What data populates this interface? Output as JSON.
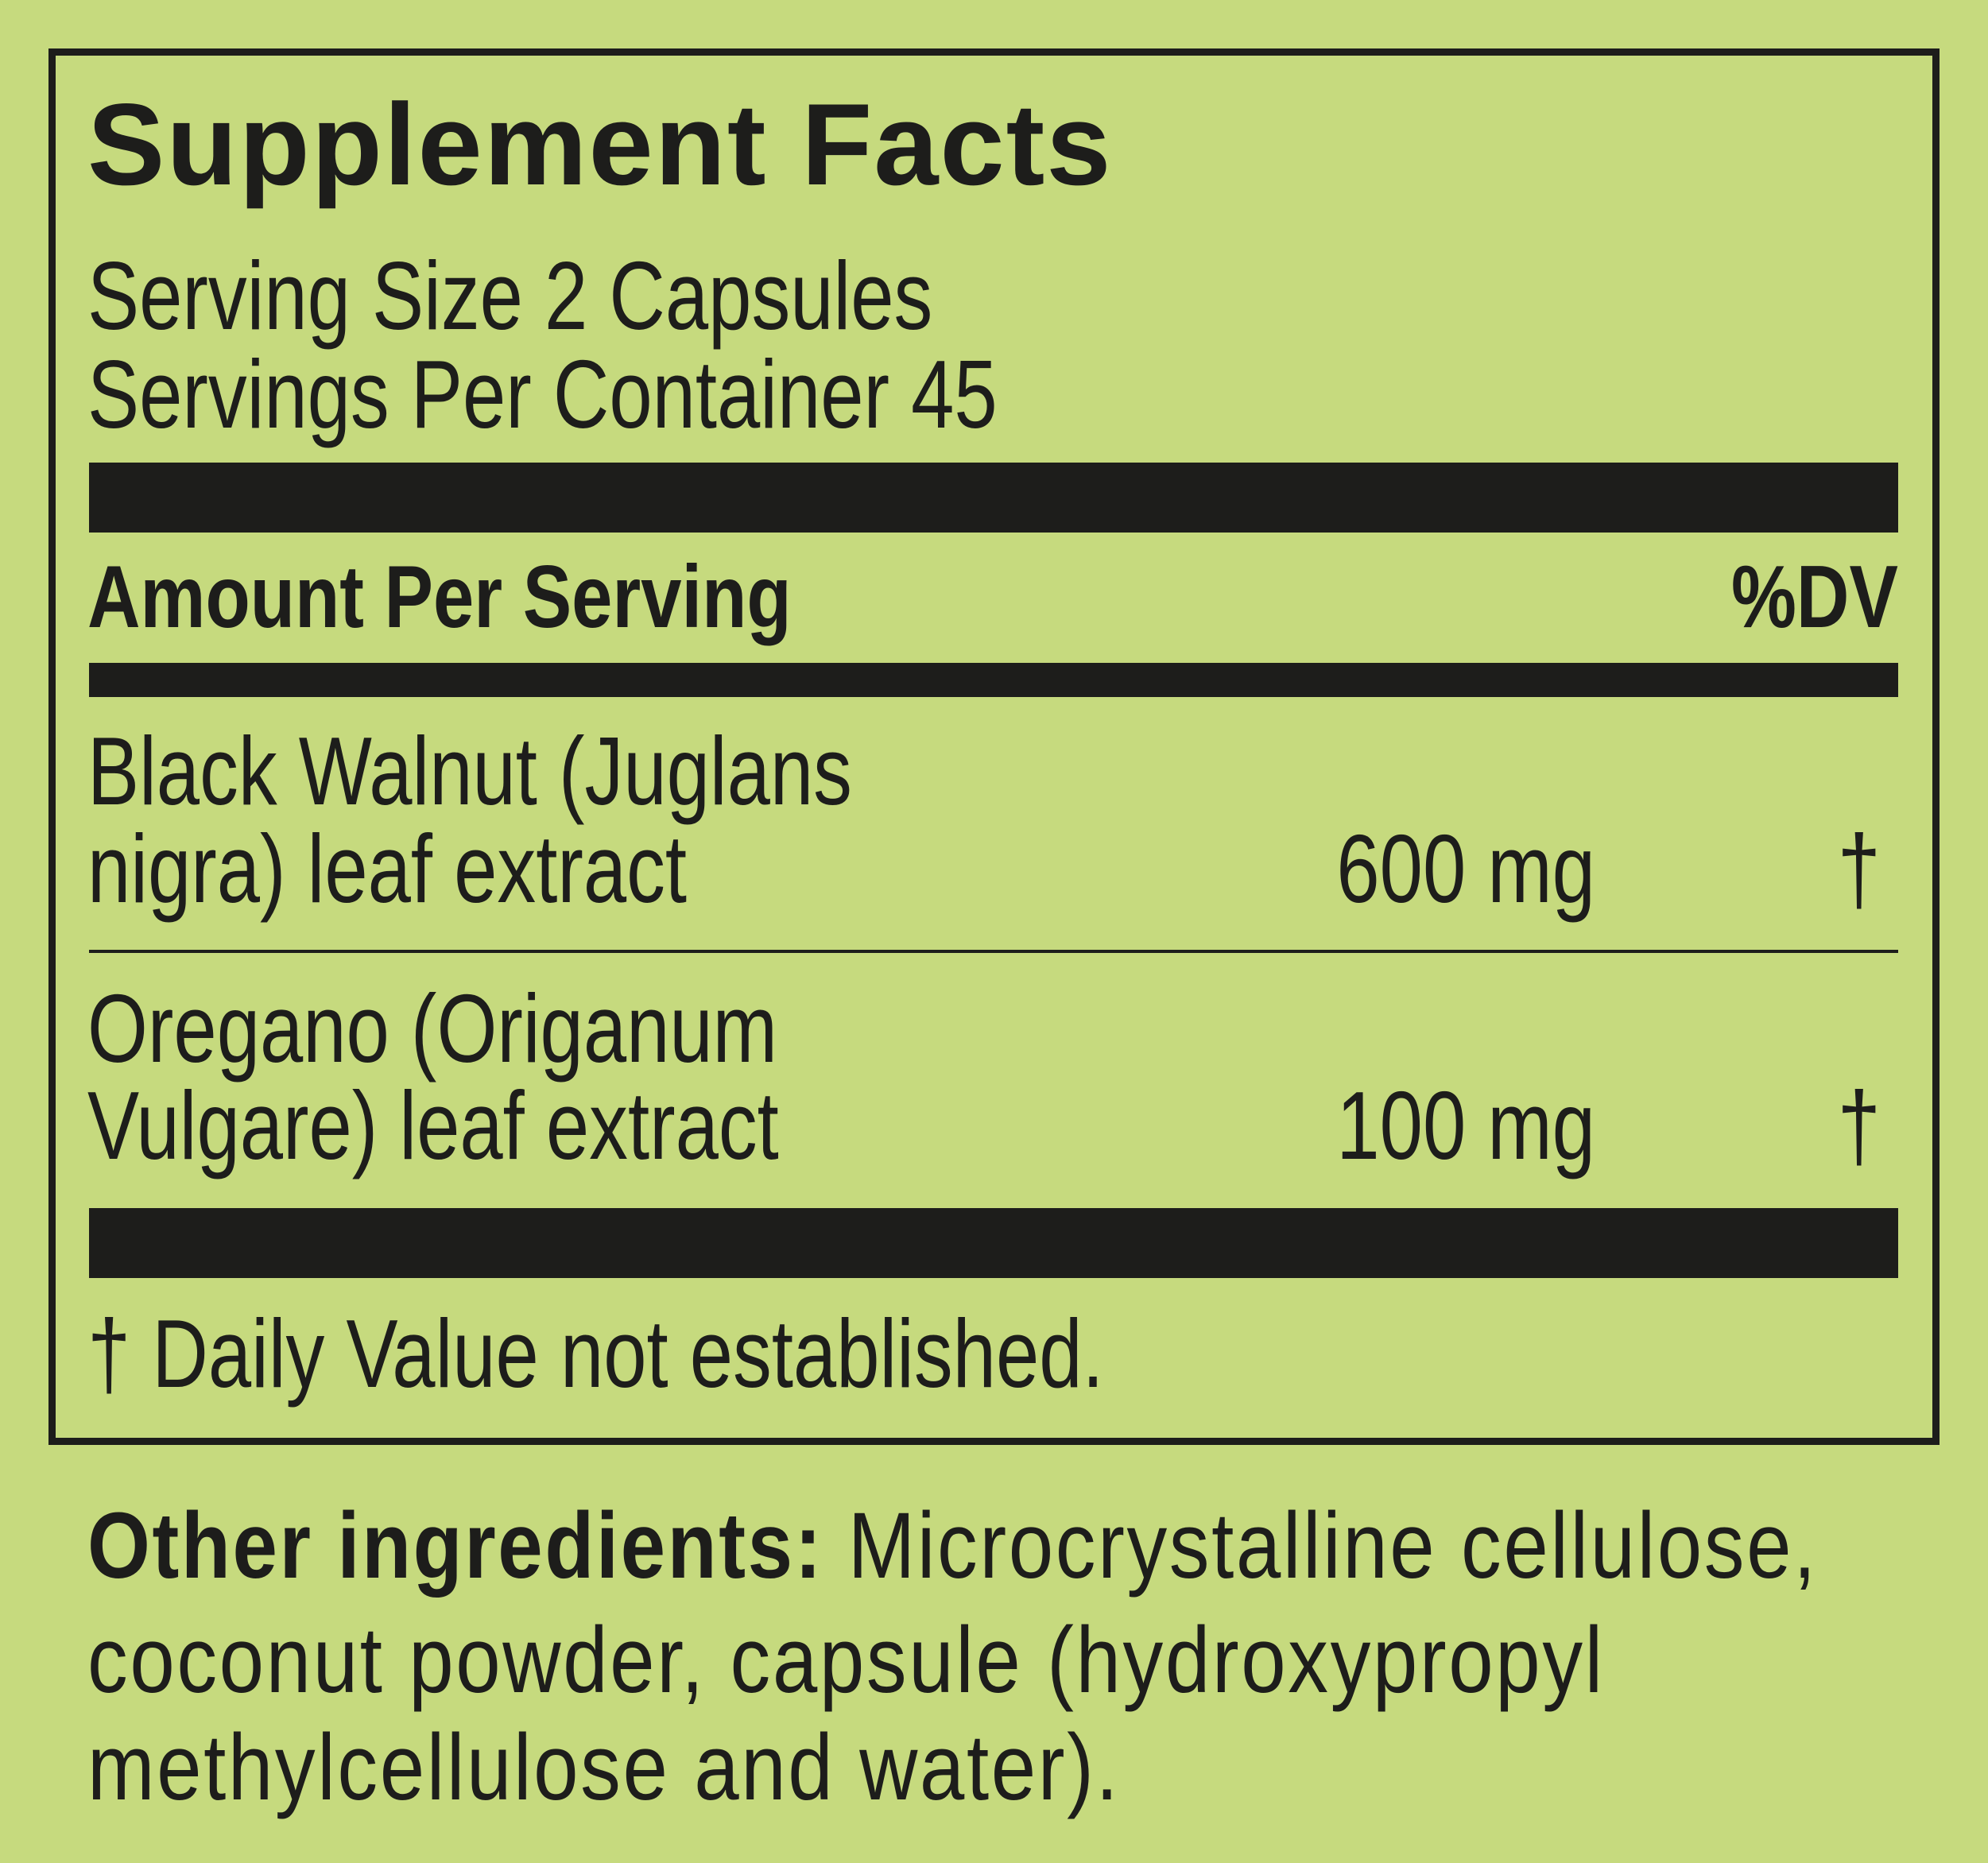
{
  "label": {
    "title": "Supplement Facts",
    "serving_size": "Serving Size 2 Capsules",
    "servings_per_container": "Servings Per Container 45",
    "amount_header": "Amount Per Serving",
    "dv_header": "%DV",
    "ingredients": [
      {
        "name_line1": "Black Walnut (Juglans",
        "name_line2": "nigra) leaf extract",
        "amount": "600 mg",
        "dv": "†"
      },
      {
        "name_line1": "Oregano (Origanum",
        "name_line2": "Vulgare) leaf extract",
        "amount": "100 mg",
        "dv": "†"
      }
    ],
    "footnote": "† Daily Value not established."
  },
  "other_ingredients": {
    "label": "Other ingredients:",
    "lines": [
      " Microcrystalline cellulose,",
      "coconut powder, capsule (hydroxypropyl",
      "methylcellulose and water)."
    ]
  },
  "colors": {
    "background": "#c6da7e",
    "ink": "#1d1d1b"
  }
}
